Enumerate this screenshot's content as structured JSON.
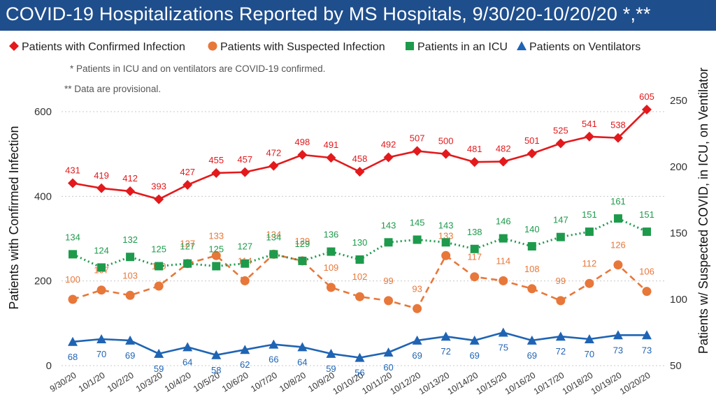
{
  "title": "COVID-19 Hospitalizations Reported by MS Hospitals, 9/30/20-10/20/20 *,**",
  "notes": [
    "* Patients in ICU and on ventilators are COVID-19 confirmed.",
    "** Data are provisional."
  ],
  "colors": {
    "title_bg": "#1f4e8c",
    "confirmed": "#e3191c",
    "suspected": "#e8773a",
    "icu": "#1e9a4c",
    "ventilators": "#1f64b4"
  },
  "chart_data": {
    "type": "line",
    "title": "COVID-19 Hospitalizations Reported by MS Hospitals, 9/30/20-10/20/20 *,**",
    "categories": [
      "9/30/20",
      "10/1/20",
      "10/2/20",
      "10/3/20",
      "10/4/20",
      "10/5/20",
      "10/6/20",
      "10/7/20",
      "10/8/20",
      "10/9/20",
      "10/10/20",
      "10/11/20",
      "10/12/20",
      "10/13/20",
      "10/14/20",
      "10/15/20",
      "10/16/20",
      "10/17/20",
      "10/18/20",
      "10/19/20",
      "10/20/20"
    ],
    "ylabel": "Patients with Confirmed Infection",
    "y2label": "Patients w/ Suspected COVID, in ICU, on Ventilator",
    "ylim": [
      0,
      640
    ],
    "yticks": [
      0,
      200,
      400,
      600
    ],
    "y2lim": [
      50,
      260
    ],
    "y2ticks": [
      50,
      100,
      150,
      200,
      250
    ],
    "grid": true,
    "legend_position": "top",
    "series": [
      {
        "name": "Patients with Confirmed Infection",
        "axis": "left",
        "marker": "diamond",
        "line": "solid",
        "color": "#e3191c",
        "values": [
          431,
          419,
          412,
          393,
          427,
          455,
          457,
          472,
          498,
          491,
          458,
          492,
          507,
          500,
          481,
          482,
          501,
          525,
          541,
          538,
          605
        ]
      },
      {
        "name": "Patients with Suspected Infection",
        "axis": "right",
        "marker": "circle",
        "line": "dashed",
        "color": "#e8773a",
        "values": [
          100,
          107,
          103,
          110,
          127,
          133,
          114,
          134,
          129,
          109,
          102,
          99,
          93,
          133,
          117,
          114,
          108,
          99,
          112,
          126,
          106
        ]
      },
      {
        "name": "Patients in an ICU",
        "axis": "right",
        "marker": "square",
        "line": "dotted",
        "color": "#1e9a4c",
        "values": [
          134,
          124,
          132,
          125,
          127,
          125,
          127,
          134,
          129,
          136,
          130,
          143,
          145,
          143,
          138,
          146,
          140,
          147,
          151,
          161,
          151
        ]
      },
      {
        "name": "Patients on Ventilators",
        "axis": "right",
        "marker": "triangle",
        "line": "solid",
        "color": "#1f64b4",
        "values": [
          68,
          70,
          69,
          59,
          64,
          58,
          62,
          66,
          64,
          59,
          56,
          60,
          69,
          72,
          69,
          75,
          69,
          72,
          70,
          73,
          73
        ]
      }
    ]
  }
}
